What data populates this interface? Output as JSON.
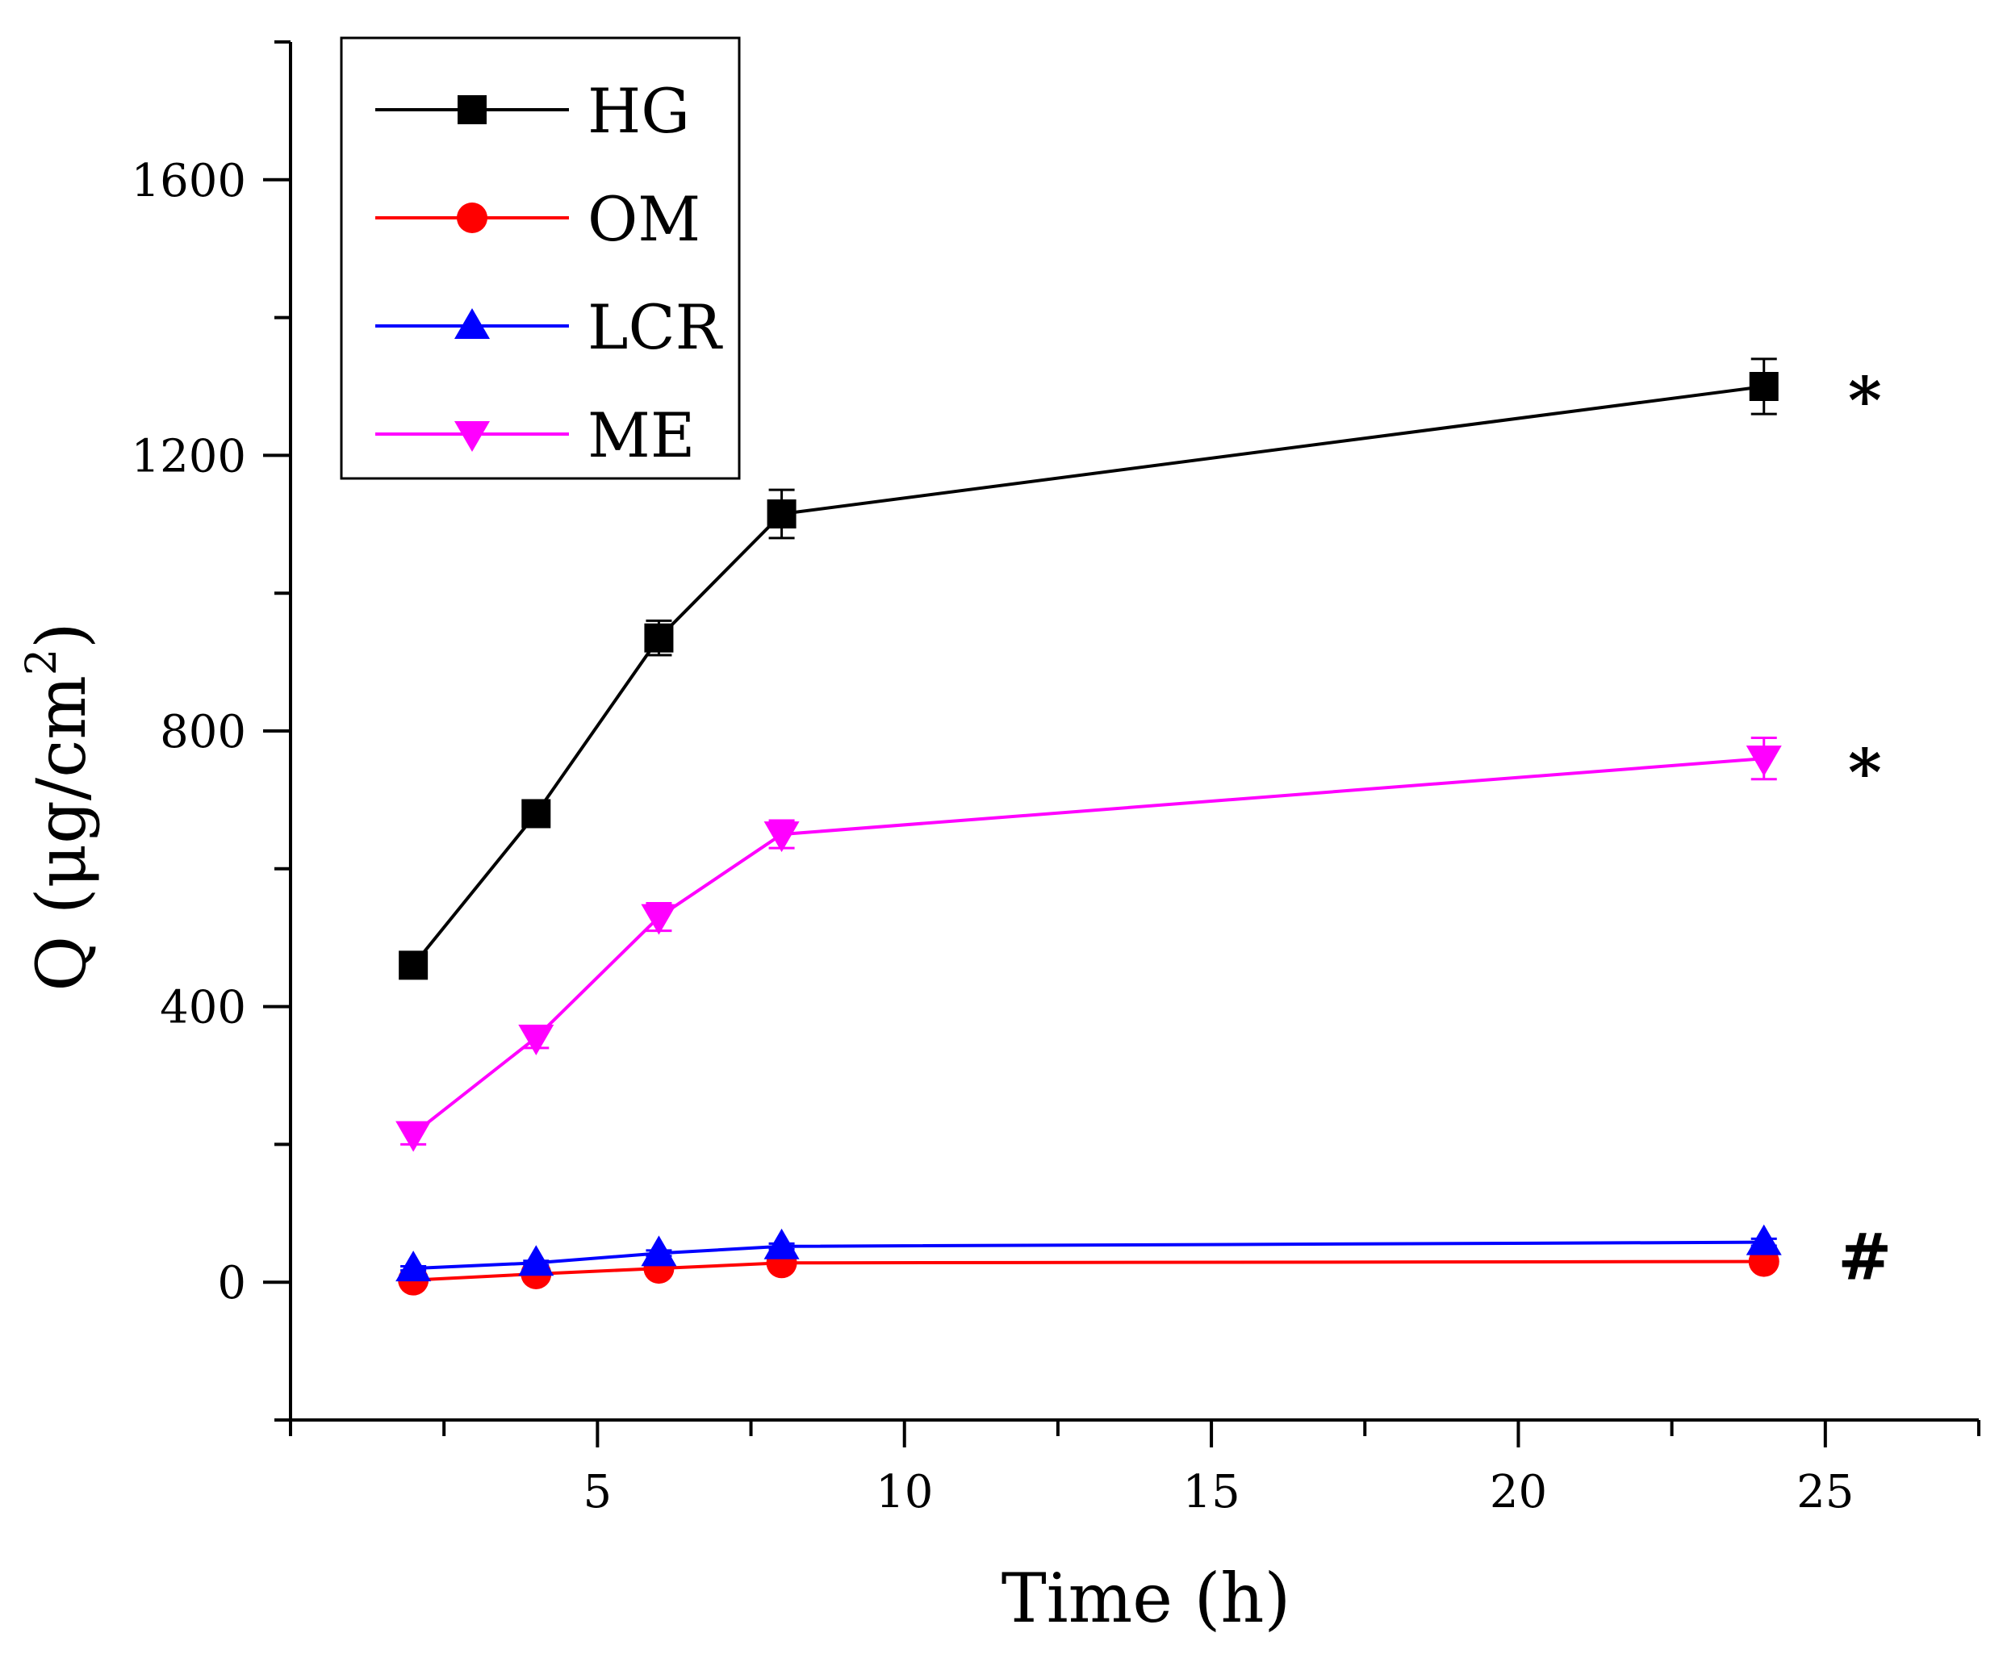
{
  "chart_data": {
    "type": "line",
    "title": "",
    "xlabel": "Time (h)",
    "ylabel_main": "Q (μg/cm",
    "ylabel_sup": "2",
    "ylabel_close": ")",
    "xlim": [
      0,
      27.5
    ],
    "ylim": [
      -200,
      1800
    ],
    "x_ticks": [
      5,
      10,
      15,
      20,
      25
    ],
    "x_tick_labels": [
      "5",
      "10",
      "15",
      "20",
      "25"
    ],
    "y_ticks": [
      0,
      400,
      800,
      1200,
      1600
    ],
    "y_tick_labels": [
      "0",
      "400",
      "800",
      "1200",
      "1600"
    ],
    "x": [
      2,
      4,
      6,
      8,
      24
    ],
    "legend_position": "top-left",
    "series": [
      {
        "name": "HG",
        "color": "#000000",
        "marker": "square",
        "values": [
          460,
          680,
          935,
          1115,
          1300
        ],
        "errors": [
          10,
          15,
          25,
          35,
          40
        ]
      },
      {
        "name": "OM",
        "color": "#ff0000",
        "marker": "circle",
        "values": [
          3,
          12,
          20,
          28,
          30
        ],
        "errors": [
          2,
          3,
          3,
          4,
          5
        ]
      },
      {
        "name": "LCR",
        "color": "#0000ff",
        "marker": "triangle-up",
        "values": [
          20,
          28,
          42,
          52,
          58
        ],
        "errors": [
          3,
          3,
          4,
          4,
          5
        ]
      },
      {
        "name": "ME",
        "color": "#ff00ff",
        "marker": "triangle-down",
        "values": [
          215,
          355,
          530,
          650,
          760
        ],
        "errors": [
          15,
          15,
          20,
          20,
          30
        ]
      }
    ],
    "annotations": [
      {
        "text": "*",
        "series": "HG"
      },
      {
        "text": "*",
        "series": "ME"
      },
      {
        "text": "#",
        "series": "OM"
      }
    ]
  }
}
